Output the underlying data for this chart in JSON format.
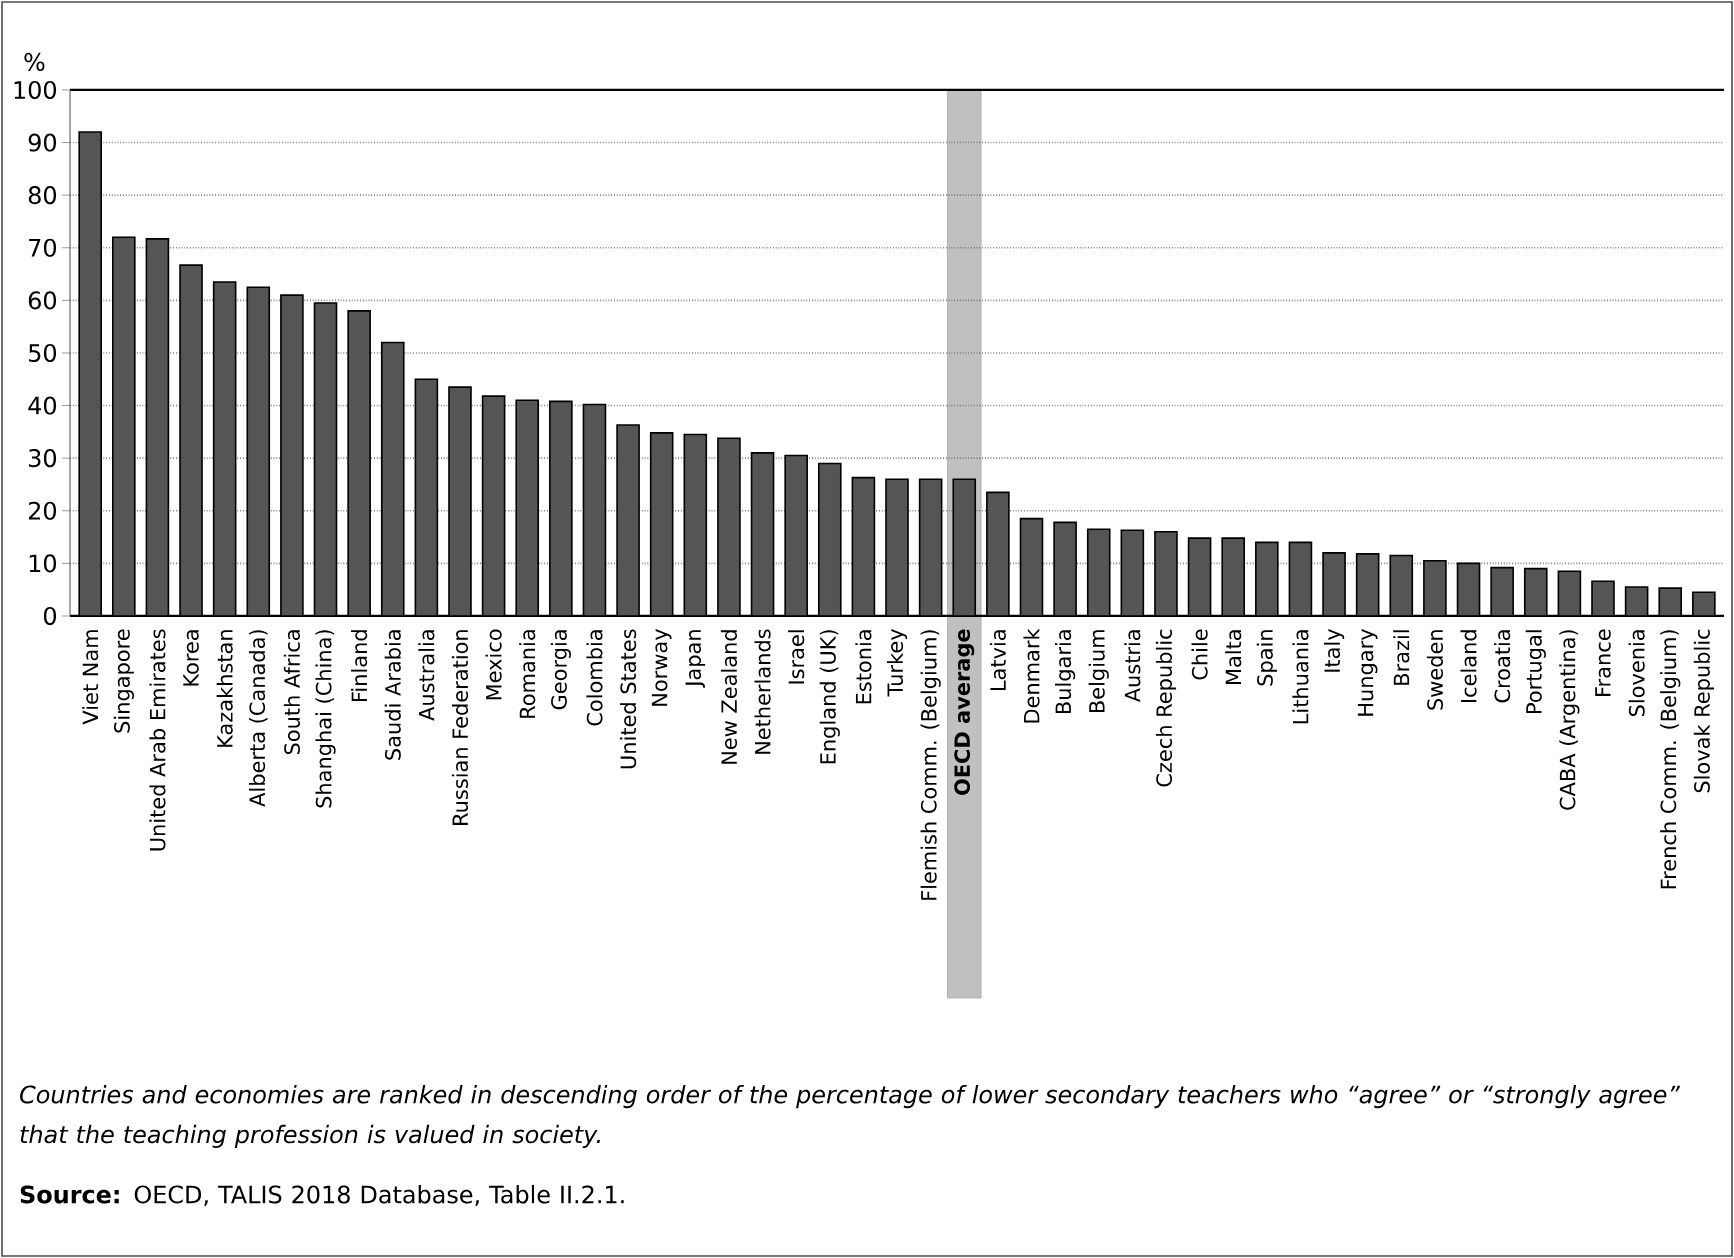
{
  "chart_data": {
    "type": "bar",
    "ylabel": "%",
    "categories": [
      "Viet Nam",
      "Singapore",
      "United Arab Emirates",
      "Korea",
      "Kazakhstan",
      "Alberta (Canada)",
      "South Africa",
      "Shanghai (China)",
      "Finland",
      "Saudi Arabia",
      "Australia",
      "Russian Federation",
      "Mexico",
      "Romania",
      "Georgia",
      "Colombia",
      "United States",
      "Norway",
      "Japan",
      "New Zealand",
      "Netherlands",
      "Israel",
      "England (UK)",
      "Estonia",
      "Turkey",
      "Flemish Comm. (Belgium)",
      "**OECD average**",
      "Latvia",
      "Denmark",
      "Bulgaria",
      "Belgium",
      "Austria",
      "Czech Republic",
      "Chile",
      "Malta",
      "Spain",
      "Lithuania",
      "Italy",
      "Hungary",
      "Brazil",
      "Sweden",
      "Iceland",
      "Croatia",
      "Portugal",
      "CABA (Argentina)",
      "France",
      "Slovenia",
      "French Comm. (Belgium)",
      "Slovak Republic"
    ],
    "values": [
      92,
      72,
      71.7,
      66.7,
      63.5,
      62.5,
      61,
      59.5,
      58,
      52,
      45,
      43.5,
      41.8,
      41,
      40.8,
      40.2,
      36.3,
      34.8,
      34.5,
      33.8,
      31,
      30.5,
      29,
      26.3,
      26,
      26,
      26,
      23.5,
      18.5,
      17.8,
      16.5,
      16.3,
      16,
      14.8,
      14.8,
      14,
      14,
      12,
      11.8,
      11.5,
      10.5,
      10,
      9.2,
      9,
      8.5,
      6.6,
      5.5,
      5.3,
      4.5
    ],
    "color": "#555555",
    "bands": [
      {
        "axis": "x",
        "from": "**OECD average**",
        "to": "**OECD average**",
        "color": "#c0c0c0"
      }
    ],
    "ylim": [
      0,
      100
    ],
    "yticks": [
      0,
      10,
      20,
      30,
      40,
      50,
      60,
      70,
      80,
      90,
      100
    ],
    "grid": "y",
    "annotations": [
      "Countries and economies are ranked in descending order of the percentage of lower secondary teachers who “agree” or “strongly agree” that the teaching profession is valued in society.",
      "**Source:** OECD, TALIS 2018 Database, Table II.2.1."
    ]
  }
}
